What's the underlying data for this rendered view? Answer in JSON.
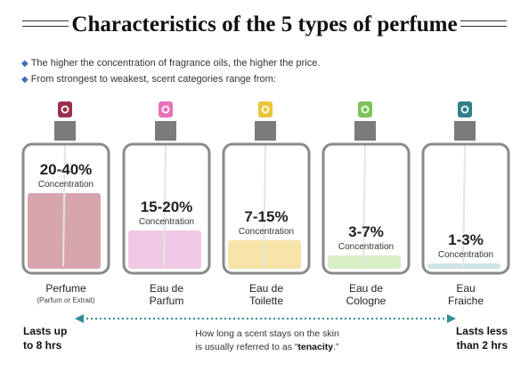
{
  "title": "Characteristics of the 5 types of perfume",
  "bullets": [
    "The higher the concentration of fragrance oils, the higher the price.",
    "From strongest to weakest, scent categories range from:"
  ],
  "perfumes": [
    {
      "name": "Perfume",
      "sub": "(Parfum or Extrait)",
      "pct": "20-40%",
      "conc_label": "Concentration",
      "fill_level": 0.4,
      "fill_color": "#d7a5ae",
      "cap_color": "#9c2f4a"
    },
    {
      "name": "Eau de Parfum",
      "sub": "",
      "pct": "15-20%",
      "conc_label": "Concentration",
      "fill_level": 0.2,
      "fill_color": "#f2c9e4",
      "cap_color": "#e872b8"
    },
    {
      "name": "Eau de Toilette",
      "sub": "",
      "pct": "7-15%",
      "conc_label": "Concentration",
      "fill_level": 0.15,
      "fill_color": "#f6e4a8",
      "cap_color": "#e9c63a"
    },
    {
      "name": "Eau de Cologne",
      "sub": "",
      "pct": "3-7%",
      "conc_label": "Concentration",
      "fill_level": 0.07,
      "fill_color": "#d8efc4",
      "cap_color": "#7cc35a"
    },
    {
      "name": "Eau Fraiche",
      "sub": "",
      "pct": "1-3%",
      "conc_label": "Concentration",
      "fill_level": 0.03,
      "fill_color": "#cfe3e6",
      "cap_color": "#2f7f8c"
    }
  ],
  "names_display": [
    [
      "Perfume"
    ],
    [
      "Eau de",
      "Parfum"
    ],
    [
      "Eau de",
      "Toilette"
    ],
    [
      "Eau de",
      "Cologne"
    ],
    [
      "Eau",
      "Fraiche"
    ]
  ],
  "footer": {
    "left_line1": "Lasts up",
    "left_line2": "to 8 hrs",
    "right_line1": "Lasts less",
    "right_line2": "than 2 hrs",
    "note_line1": "How long a scent stays on the skin",
    "note_line2_pre": "is usually referred to as “",
    "note_bold": "tenacity",
    "note_line2_post": ".”"
  },
  "colors": {
    "arrow": "#2f8f95",
    "bullet": "#3a6fb5",
    "bottle_outline": "#8a8a8a",
    "neck": "#7b7b7b"
  }
}
